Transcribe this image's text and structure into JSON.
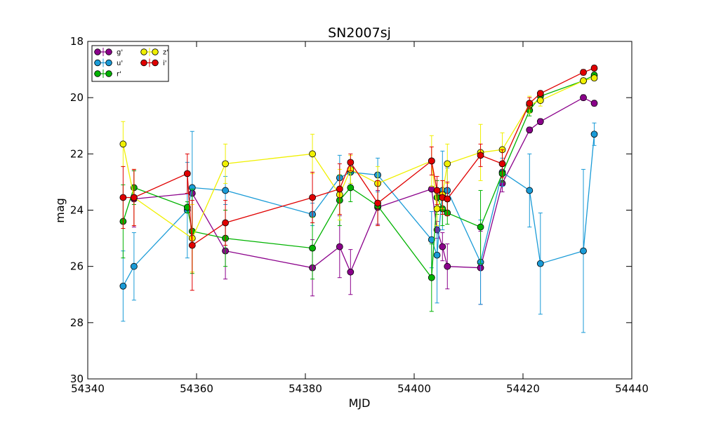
{
  "chart_data": {
    "type": "line",
    "title": "SN2007sj",
    "xlabel": "MJD",
    "ylabel": "mag",
    "xlim": [
      54340,
      54440
    ],
    "ylim": [
      30,
      18
    ],
    "y_inverted": true,
    "x_ticks": [
      54340,
      54360,
      54380,
      54400,
      54420,
      54440
    ],
    "y_ticks": [
      18,
      20,
      22,
      24,
      26,
      28,
      30
    ],
    "grid": false,
    "legend_position": "top-left",
    "error_bars": true,
    "series": [
      {
        "name": "g'",
        "color": "#8b008b",
        "points": [
          {
            "x": 54348.5,
            "y": 23.6,
            "err": 1.0
          },
          {
            "x": 54359.2,
            "y": 23.4,
            "err": 0.0
          },
          {
            "x": 54365.3,
            "y": 25.45,
            "err": 1.0
          },
          {
            "x": 54381.3,
            "y": 26.05,
            "err": 1.0
          },
          {
            "x": 54386.3,
            "y": 25.3,
            "err": 1.1
          },
          {
            "x": 54388.3,
            "y": 26.2,
            "err": 0.8
          },
          {
            "x": 54393.3,
            "y": 23.9,
            "err": 0.6
          },
          {
            "x": 54403.2,
            "y": 23.25,
            "err": 0.0
          },
          {
            "x": 54404.2,
            "y": 24.7,
            "err": 0.3
          },
          {
            "x": 54405.2,
            "y": 25.3,
            "err": 0.5
          },
          {
            "x": 54406.1,
            "y": 26.0,
            "err": 0.8
          },
          {
            "x": 54412.2,
            "y": 26.05,
            "err": 1.3
          },
          {
            "x": 54416.2,
            "y": 23.05,
            "err": 0.3
          },
          {
            "x": 54421.2,
            "y": 21.15,
            "err": 0.1
          },
          {
            "x": 54423.2,
            "y": 20.85,
            "err": 0.1
          },
          {
            "x": 54431.1,
            "y": 20.0,
            "err": 0.1
          },
          {
            "x": 54433.1,
            "y": 20.2,
            "err": 0.1
          }
        ]
      },
      {
        "name": "u'",
        "color": "#1a9bd7",
        "points": [
          {
            "x": 54346.5,
            "y": 26.7,
            "err": 1.25
          },
          {
            "x": 54348.5,
            "y": 26.0,
            "err": 1.2
          },
          {
            "x": 54358.3,
            "y": 24.0,
            "err": 1.7
          },
          {
            "x": 54359.2,
            "y": 23.2,
            "err": 2.0
          },
          {
            "x": 54365.3,
            "y": 23.3,
            "err": 0.5
          },
          {
            "x": 54381.3,
            "y": 24.15,
            "err": 0.4
          },
          {
            "x": 54386.3,
            "y": 22.85,
            "err": 0.8
          },
          {
            "x": 54388.3,
            "y": 22.65,
            "err": 0.4
          },
          {
            "x": 54393.3,
            "y": 22.75,
            "err": 0.6
          },
          {
            "x": 54403.2,
            "y": 25.05,
            "err": 1.0
          },
          {
            "x": 54404.2,
            "y": 25.6,
            "err": 1.7
          },
          {
            "x": 54405.2,
            "y": 23.3,
            "err": 1.4
          },
          {
            "x": 54406.1,
            "y": 23.3,
            "err": 0.8
          },
          {
            "x": 54412.2,
            "y": 25.85,
            "err": 1.5
          },
          {
            "x": 54416.2,
            "y": 22.65,
            "err": 0.5
          },
          {
            "x": 54421.2,
            "y": 23.3,
            "err": 1.3
          },
          {
            "x": 54423.2,
            "y": 25.9,
            "err": 1.8
          },
          {
            "x": 54431.1,
            "y": 25.45,
            "err": 2.9
          },
          {
            "x": 54433.1,
            "y": 21.3,
            "err": 0.4
          }
        ]
      },
      {
        "name": "r'",
        "color": "#00b300",
        "points": [
          {
            "x": 54346.5,
            "y": 24.4,
            "err": 1.3
          },
          {
            "x": 54348.5,
            "y": 23.2,
            "err": 0.6
          },
          {
            "x": 54358.3,
            "y": 23.9,
            "err": 0.2
          },
          {
            "x": 54359.2,
            "y": 24.75,
            "err": 1.5
          },
          {
            "x": 54365.3,
            "y": 25.0,
            "err": 1.0
          },
          {
            "x": 54381.3,
            "y": 25.35,
            "err": 1.1
          },
          {
            "x": 54386.3,
            "y": 23.65,
            "err": 0.9
          },
          {
            "x": 54388.3,
            "y": 23.2,
            "err": 0.5
          },
          {
            "x": 54393.3,
            "y": 23.85,
            "err": 0.7
          },
          {
            "x": 54403.2,
            "y": 26.4,
            "err": 1.2
          },
          {
            "x": 54404.2,
            "y": 23.55,
            "err": 0.6
          },
          {
            "x": 54405.2,
            "y": 23.95,
            "err": 0.6
          },
          {
            "x": 54406.1,
            "y": 24.1,
            "err": 0.4
          },
          {
            "x": 54412.2,
            "y": 24.6,
            "err": 1.3
          },
          {
            "x": 54416.2,
            "y": 22.7,
            "err": 0.3
          },
          {
            "x": 54421.2,
            "y": 20.45,
            "err": 0.2
          },
          {
            "x": 54423.2,
            "y": 19.95,
            "err": 0.1
          },
          {
            "x": 54431.1,
            "y": 19.4,
            "err": 0.1
          },
          {
            "x": 54433.1,
            "y": 19.2,
            "err": 0.1
          }
        ]
      },
      {
        "name": "z'",
        "color": "#f0f000",
        "points": [
          {
            "x": 54346.5,
            "y": 21.65,
            "err": 0.8
          },
          {
            "x": 54348.5,
            "y": 23.55,
            "err": 1.0
          },
          {
            "x": 54359.2,
            "y": 25.0,
            "err": 1.2
          },
          {
            "x": 54365.3,
            "y": 22.35,
            "err": 0.7
          },
          {
            "x": 54381.3,
            "y": 22.0,
            "err": 0.7
          },
          {
            "x": 54386.3,
            "y": 23.45,
            "err": 0.9
          },
          {
            "x": 54388.3,
            "y": 22.55,
            "err": 0.5
          },
          {
            "x": 54393.3,
            "y": 23.05,
            "err": 0.6
          },
          {
            "x": 54403.2,
            "y": 22.25,
            "err": 0.9
          },
          {
            "x": 54404.2,
            "y": 23.95,
            "err": 0.6
          },
          {
            "x": 54405.2,
            "y": 23.45,
            "err": 0.5
          },
          {
            "x": 54406.1,
            "y": 22.35,
            "err": 0.7
          },
          {
            "x": 54412.2,
            "y": 21.95,
            "err": 1.0
          },
          {
            "x": 54416.2,
            "y": 21.85,
            "err": 0.6
          },
          {
            "x": 54421.2,
            "y": 20.25,
            "err": 0.3
          },
          {
            "x": 54423.2,
            "y": 20.1,
            "err": 0.2
          },
          {
            "x": 54431.1,
            "y": 19.4,
            "err": 0.1
          },
          {
            "x": 54433.1,
            "y": 19.3,
            "err": 0.1
          }
        ]
      },
      {
        "name": "i'",
        "color": "#e00000",
        "points": [
          {
            "x": 54346.5,
            "y": 23.55,
            "err": 1.1
          },
          {
            "x": 54348.5,
            "y": 23.55,
            "err": 1.0
          },
          {
            "x": 54358.3,
            "y": 22.7,
            "err": 0.7
          },
          {
            "x": 54359.2,
            "y": 25.25,
            "err": 1.6
          },
          {
            "x": 54365.3,
            "y": 24.45,
            "err": 0.8
          },
          {
            "x": 54381.3,
            "y": 23.55,
            "err": 0.9
          },
          {
            "x": 54386.3,
            "y": 23.25,
            "err": 0.9
          },
          {
            "x": 54388.3,
            "y": 22.3,
            "err": 0.3
          },
          {
            "x": 54393.3,
            "y": 23.75,
            "err": 0.8
          },
          {
            "x": 54403.2,
            "y": 22.25,
            "err": 0.5
          },
          {
            "x": 54404.2,
            "y": 23.3,
            "err": 0.5
          },
          {
            "x": 54405.2,
            "y": 23.55,
            "err": 0.6
          },
          {
            "x": 54406.1,
            "y": 23.6,
            "err": 0.6
          },
          {
            "x": 54412.2,
            "y": 22.05,
            "err": 0.4
          },
          {
            "x": 54416.2,
            "y": 22.35,
            "err": 0.5
          },
          {
            "x": 54421.2,
            "y": 20.2,
            "err": 0.2
          },
          {
            "x": 54423.2,
            "y": 19.85,
            "err": 0.1
          },
          {
            "x": 54431.1,
            "y": 19.1,
            "err": 0.1
          },
          {
            "x": 54433.1,
            "y": 18.95,
            "err": 0.1
          }
        ]
      }
    ]
  }
}
